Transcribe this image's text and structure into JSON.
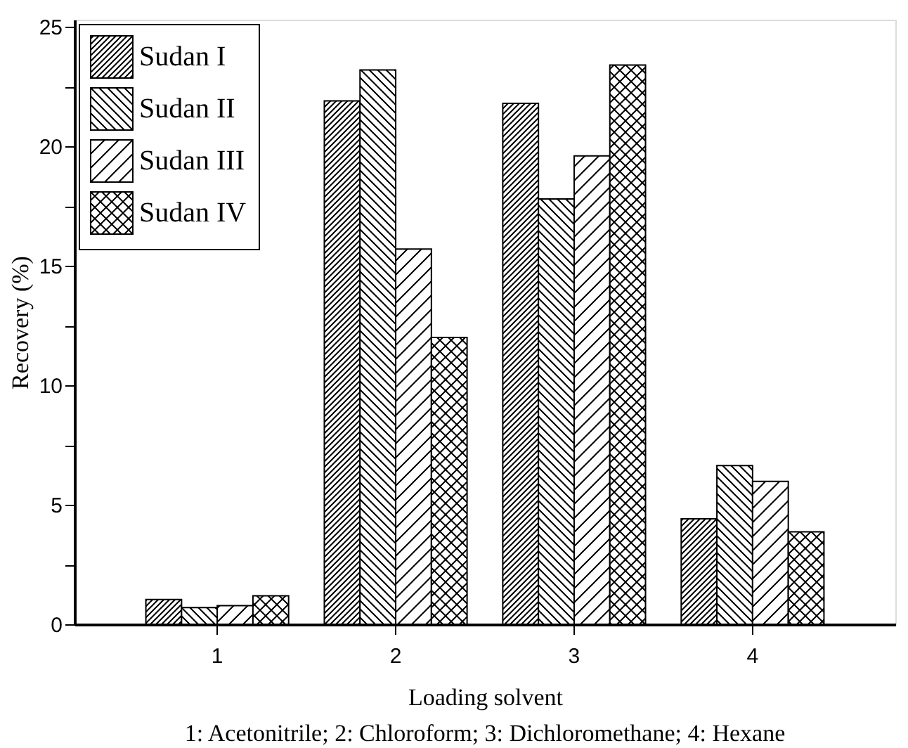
{
  "chart_data": {
    "type": "bar",
    "xlabel": "Loading solvent",
    "ylabel": "Recovery (%)",
    "categories": [
      "1",
      "2",
      "3",
      "4"
    ],
    "series": [
      {
        "name": "Sudan I",
        "color": "#000000",
        "values": [
          1.04,
          21.9,
          21.8,
          4.41
        ]
      },
      {
        "name": "Sudan II",
        "color": "#000000",
        "values": [
          0.7,
          23.2,
          17.8,
          6.64
        ]
      },
      {
        "name": "Sudan III",
        "color": "#000000",
        "values": [
          0.78,
          15.7,
          19.6,
          5.98
        ]
      },
      {
        "name": "Sudan IV",
        "color": "#000000",
        "values": [
          1.19,
          12.0,
          23.4,
          3.87
        ]
      }
    ],
    "ylim": [
      0,
      25.3
    ],
    "yticks": [
      0,
      {
        "value": 2.5,
        "label": null
      },
      5,
      {
        "value": 7.5,
        "label": null
      },
      10,
      {
        "value": 12.5,
        "label": null
      },
      15,
      {
        "value": 17.5,
        "label": null
      },
      20,
      {
        "value": 22.5,
        "label": null
      },
      25
    ],
    "annotations": [
      "1: Acetonitrile; 2: Chloroform; 3: Dichloromethane; 4: Hexane"
    ],
    "legend": "top left",
    "grid": false
  }
}
